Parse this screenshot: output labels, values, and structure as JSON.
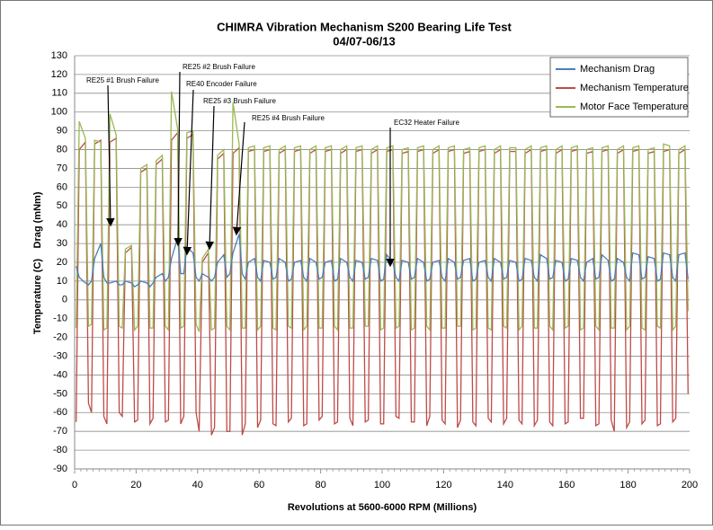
{
  "chart_data": {
    "type": "line",
    "title": "CHIMRA Vibration Mechanism S200 Bearing Life Test",
    "subtitle": "04/07-06/13",
    "x_label": "Revolutions at 5600-6000 RPM (Millions)",
    "y_labels": [
      "Temperature (C)",
      "Drag (mNm)"
    ],
    "xlim": [
      0,
      200
    ],
    "xticks": [
      0,
      20,
      40,
      60,
      80,
      100,
      120,
      140,
      160,
      180,
      200
    ],
    "ylim": [
      -90,
      130
    ],
    "yticks": [
      -90,
      -80,
      -70,
      -60,
      -50,
      -40,
      -30,
      -20,
      -10,
      0,
      10,
      20,
      30,
      40,
      50,
      60,
      70,
      80,
      90,
      100,
      110,
      120,
      130
    ],
    "grid": true,
    "legend": "upper right",
    "x": [
      0.5,
      1.5,
      3.5,
      4.5,
      5.5,
      6.5,
      8.5,
      9.5,
      10.5,
      11.5,
      13.5,
      14.5,
      15.5,
      16.5,
      18.5,
      19.5,
      20.5,
      21.5,
      23.5,
      24.5,
      25.5,
      26.5,
      28.5,
      29.5,
      30.5,
      31.5,
      33.5,
      34.5,
      35.5,
      36.5,
      38.5,
      39.5,
      40.5,
      41.5,
      43.5,
      44.5,
      45.5,
      46.5,
      48.5,
      49.5,
      50.5,
      51.5,
      53.5,
      54.5,
      55.5,
      56.5,
      58.5,
      59.5,
      60.5,
      61.5,
      63.5,
      64.5,
      65.5,
      66.5,
      68.5,
      69.5,
      70.5,
      71.5,
      73.5,
      74.5,
      75.5,
      76.5,
      78.5,
      79.5,
      80.5,
      81.5,
      83.5,
      84.5,
      85.5,
      86.5,
      88.5,
      89.5,
      90.5,
      91.5,
      93.5,
      94.5,
      95.5,
      96.5,
      98.5,
      99.5,
      100.5,
      101.5,
      103.5,
      104.5,
      105.5,
      106.5,
      108.5,
      109.5,
      110.5,
      111.5,
      113.5,
      114.5,
      115.5,
      116.5,
      118.5,
      119.5,
      120.5,
      121.5,
      123.5,
      124.5,
      125.5,
      126.5,
      128.5,
      129.5,
      130.5,
      131.5,
      133.5,
      134.5,
      135.5,
      136.5,
      138.5,
      139.5,
      140.5,
      141.5,
      143.5,
      144.5,
      145.5,
      146.5,
      148.5,
      149.5,
      150.5,
      151.5,
      153.5,
      154.5,
      155.5,
      156.5,
      158.5,
      159.5,
      160.5,
      161.5,
      163.5,
      164.5,
      165.5,
      166.5,
      168.5,
      169.5,
      170.5,
      171.5,
      173.5,
      174.5,
      175.5,
      176.5,
      178.5,
      179.5,
      180.5,
      181.5,
      183.5,
      184.5,
      185.5,
      186.5,
      188.5,
      189.5,
      190.5,
      191.5,
      193.5,
      194.5,
      195.5,
      196.5,
      198.5,
      199.5
    ],
    "series": [
      {
        "name": "Mechanism Drag",
        "color": "#4a7ebb",
        "values": [
          18,
          12,
          9,
          8,
          10,
          22,
          30,
          12,
          9,
          9,
          10,
          8,
          8,
          10,
          9,
          7,
          8,
          10,
          9,
          7,
          9,
          12,
          14,
          10,
          12,
          22,
          33,
          14,
          14,
          28,
          25,
          12,
          10,
          14,
          12,
          10,
          12,
          20,
          24,
          12,
          14,
          25,
          35,
          14,
          11,
          20,
          22,
          12,
          10,
          21,
          20,
          11,
          12,
          22,
          20,
          10,
          11,
          20,
          21,
          12,
          10,
          22,
          20,
          11,
          12,
          20,
          21,
          10,
          11,
          22,
          20,
          12,
          10,
          21,
          20,
          11,
          12,
          22,
          21,
          10,
          11,
          24,
          20,
          12,
          10,
          21,
          20,
          11,
          12,
          22,
          20,
          10,
          11,
          20,
          21,
          12,
          10,
          22,
          20,
          11,
          12,
          21,
          22,
          10,
          11,
          20,
          21,
          12,
          10,
          22,
          20,
          11,
          12,
          21,
          20,
          10,
          11,
          22,
          21,
          12,
          10,
          24,
          22,
          11,
          12,
          21,
          20,
          10,
          11,
          22,
          21,
          12,
          10,
          20,
          22,
          11,
          12,
          24,
          21,
          10,
          11,
          22,
          20,
          12,
          10,
          25,
          24,
          11,
          12,
          23,
          22,
          10,
          11,
          25,
          24,
          12,
          10,
          24,
          25,
          11
        ]
      },
      {
        "name": "Mechanism Temperature",
        "color": "#be4b48",
        "values": [
          -65,
          80,
          84,
          -55,
          -60,
          83,
          85,
          -62,
          -66,
          84,
          86,
          -60,
          -62,
          25,
          28,
          -65,
          -64,
          68,
          70,
          -66,
          -63,
          72,
          75,
          -65,
          -64,
          85,
          89,
          -66,
          -62,
          86,
          88,
          -60,
          -70,
          20,
          25,
          -72,
          -68,
          75,
          78,
          -70,
          -70,
          78,
          81,
          -72,
          -66,
          79,
          80,
          -68,
          -64,
          79,
          80,
          -66,
          -67,
          78,
          80,
          -65,
          -63,
          79,
          80,
          -67,
          -66,
          78,
          80,
          -64,
          -62,
          79,
          80,
          -66,
          -65,
          78,
          80,
          -63,
          -67,
          79,
          80,
          -65,
          -64,
          78,
          80,
          -66,
          -66,
          79,
          80,
          -62,
          -63,
          78,
          79,
          -65,
          -65,
          79,
          80,
          -67,
          -62,
          78,
          80,
          -64,
          -66,
          79,
          80,
          -68,
          -64,
          78,
          79,
          -65,
          -67,
          79,
          80,
          -63,
          -65,
          78,
          80,
          -66,
          -63,
          79,
          79,
          -64,
          -66,
          78,
          80,
          -67,
          -64,
          79,
          80,
          -65,
          -67,
          78,
          80,
          -66,
          -65,
          79,
          80,
          -63,
          -63,
          78,
          79,
          -67,
          -66,
          79,
          80,
          -64,
          -70,
          78,
          80,
          -68,
          -65,
          79,
          80,
          -66,
          -64,
          78,
          79,
          -67,
          -66,
          79,
          80,
          -65,
          -63,
          78,
          80,
          -50
        ]
      },
      {
        "name": "Motor Face Temperature",
        "color": "#98b954",
        "values": [
          -15,
          95,
          86,
          -14,
          -13,
          85,
          84,
          -16,
          -15,
          99,
          88,
          -14,
          -15,
          27,
          29,
          -16,
          -14,
          70,
          72,
          -15,
          -15,
          74,
          77,
          -14,
          -16,
          111,
          91,
          -15,
          -14,
          89,
          90,
          -13,
          -17,
          22,
          27,
          -16,
          -15,
          77,
          80,
          -14,
          -16,
          105,
          83,
          -15,
          -15,
          81,
          82,
          -16,
          -14,
          81,
          82,
          -15,
          -16,
          80,
          82,
          -14,
          -15,
          81,
          82,
          -16,
          -14,
          80,
          82,
          -15,
          -15,
          81,
          82,
          -14,
          -16,
          80,
          82,
          -15,
          -15,
          81,
          82,
          -14,
          -14,
          80,
          82,
          -16,
          -15,
          81,
          82,
          -15,
          -14,
          80,
          81,
          -16,
          -15,
          81,
          82,
          -14,
          -16,
          80,
          82,
          -15,
          -15,
          81,
          82,
          -14,
          -14,
          80,
          81,
          -16,
          -15,
          81,
          82,
          -15,
          -16,
          80,
          82,
          -14,
          -15,
          81,
          81,
          -16,
          -14,
          80,
          82,
          -15,
          -15,
          81,
          82,
          -14,
          -16,
          80,
          82,
          -15,
          -14,
          81,
          82,
          -16,
          -15,
          80,
          81,
          -14,
          -16,
          81,
          82,
          -15,
          -15,
          80,
          82,
          -16,
          -14,
          81,
          82,
          -15,
          -16,
          80,
          81,
          -14,
          -15,
          83,
          82,
          -16,
          -14,
          80,
          82,
          -6
        ]
      }
    ],
    "annotations": [
      "RE25 #1 Brush Failure",
      "RE25 #2 Brush Failure",
      "RE40 Encoder Failure",
      "RE25 #3 Brush Failure",
      "RE25 #4 Brush Failure",
      "EC32 Heater Failure"
    ]
  }
}
